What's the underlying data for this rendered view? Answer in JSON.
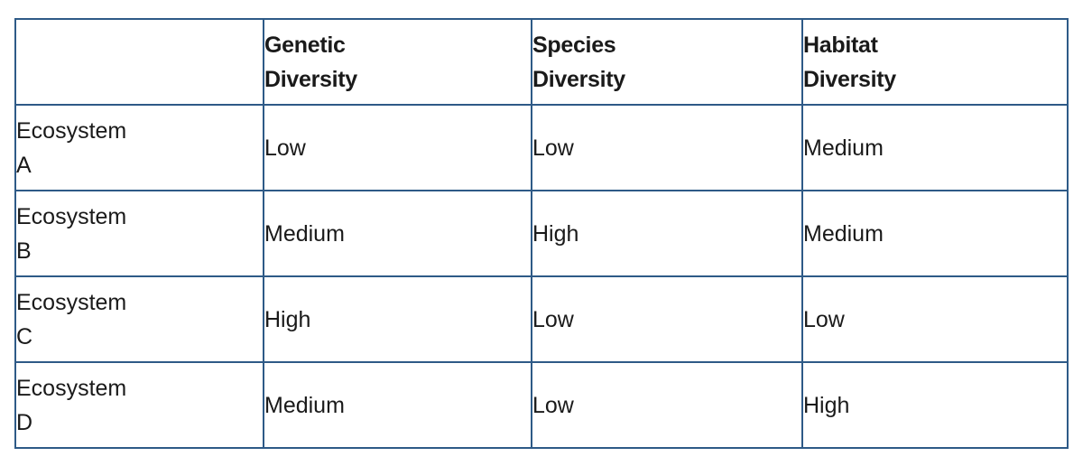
{
  "table": {
    "columns": [
      {
        "line1": "Genetic",
        "line2": "Diversity"
      },
      {
        "line1": "Species",
        "line2": "Diversity"
      },
      {
        "line1": "Habitat",
        "line2": "Diversity"
      }
    ],
    "rows": [
      {
        "label_line1": "Ecosystem",
        "label_line2": "A",
        "values": [
          "Low",
          "Low",
          "Medium"
        ]
      },
      {
        "label_line1": "Ecosystem",
        "label_line2": "B",
        "values": [
          "Medium",
          "High",
          "Medium"
        ]
      },
      {
        "label_line1": "Ecosystem",
        "label_line2": "C",
        "values": [
          "High",
          "Low",
          "Low"
        ]
      },
      {
        "label_line1": "Ecosystem",
        "label_line2": "D",
        "values": [
          "Medium",
          "Low",
          "High"
        ]
      }
    ]
  },
  "colors": {
    "border": "#2e5a87",
    "text": "#1a1a1a",
    "background": "#ffffff"
  }
}
